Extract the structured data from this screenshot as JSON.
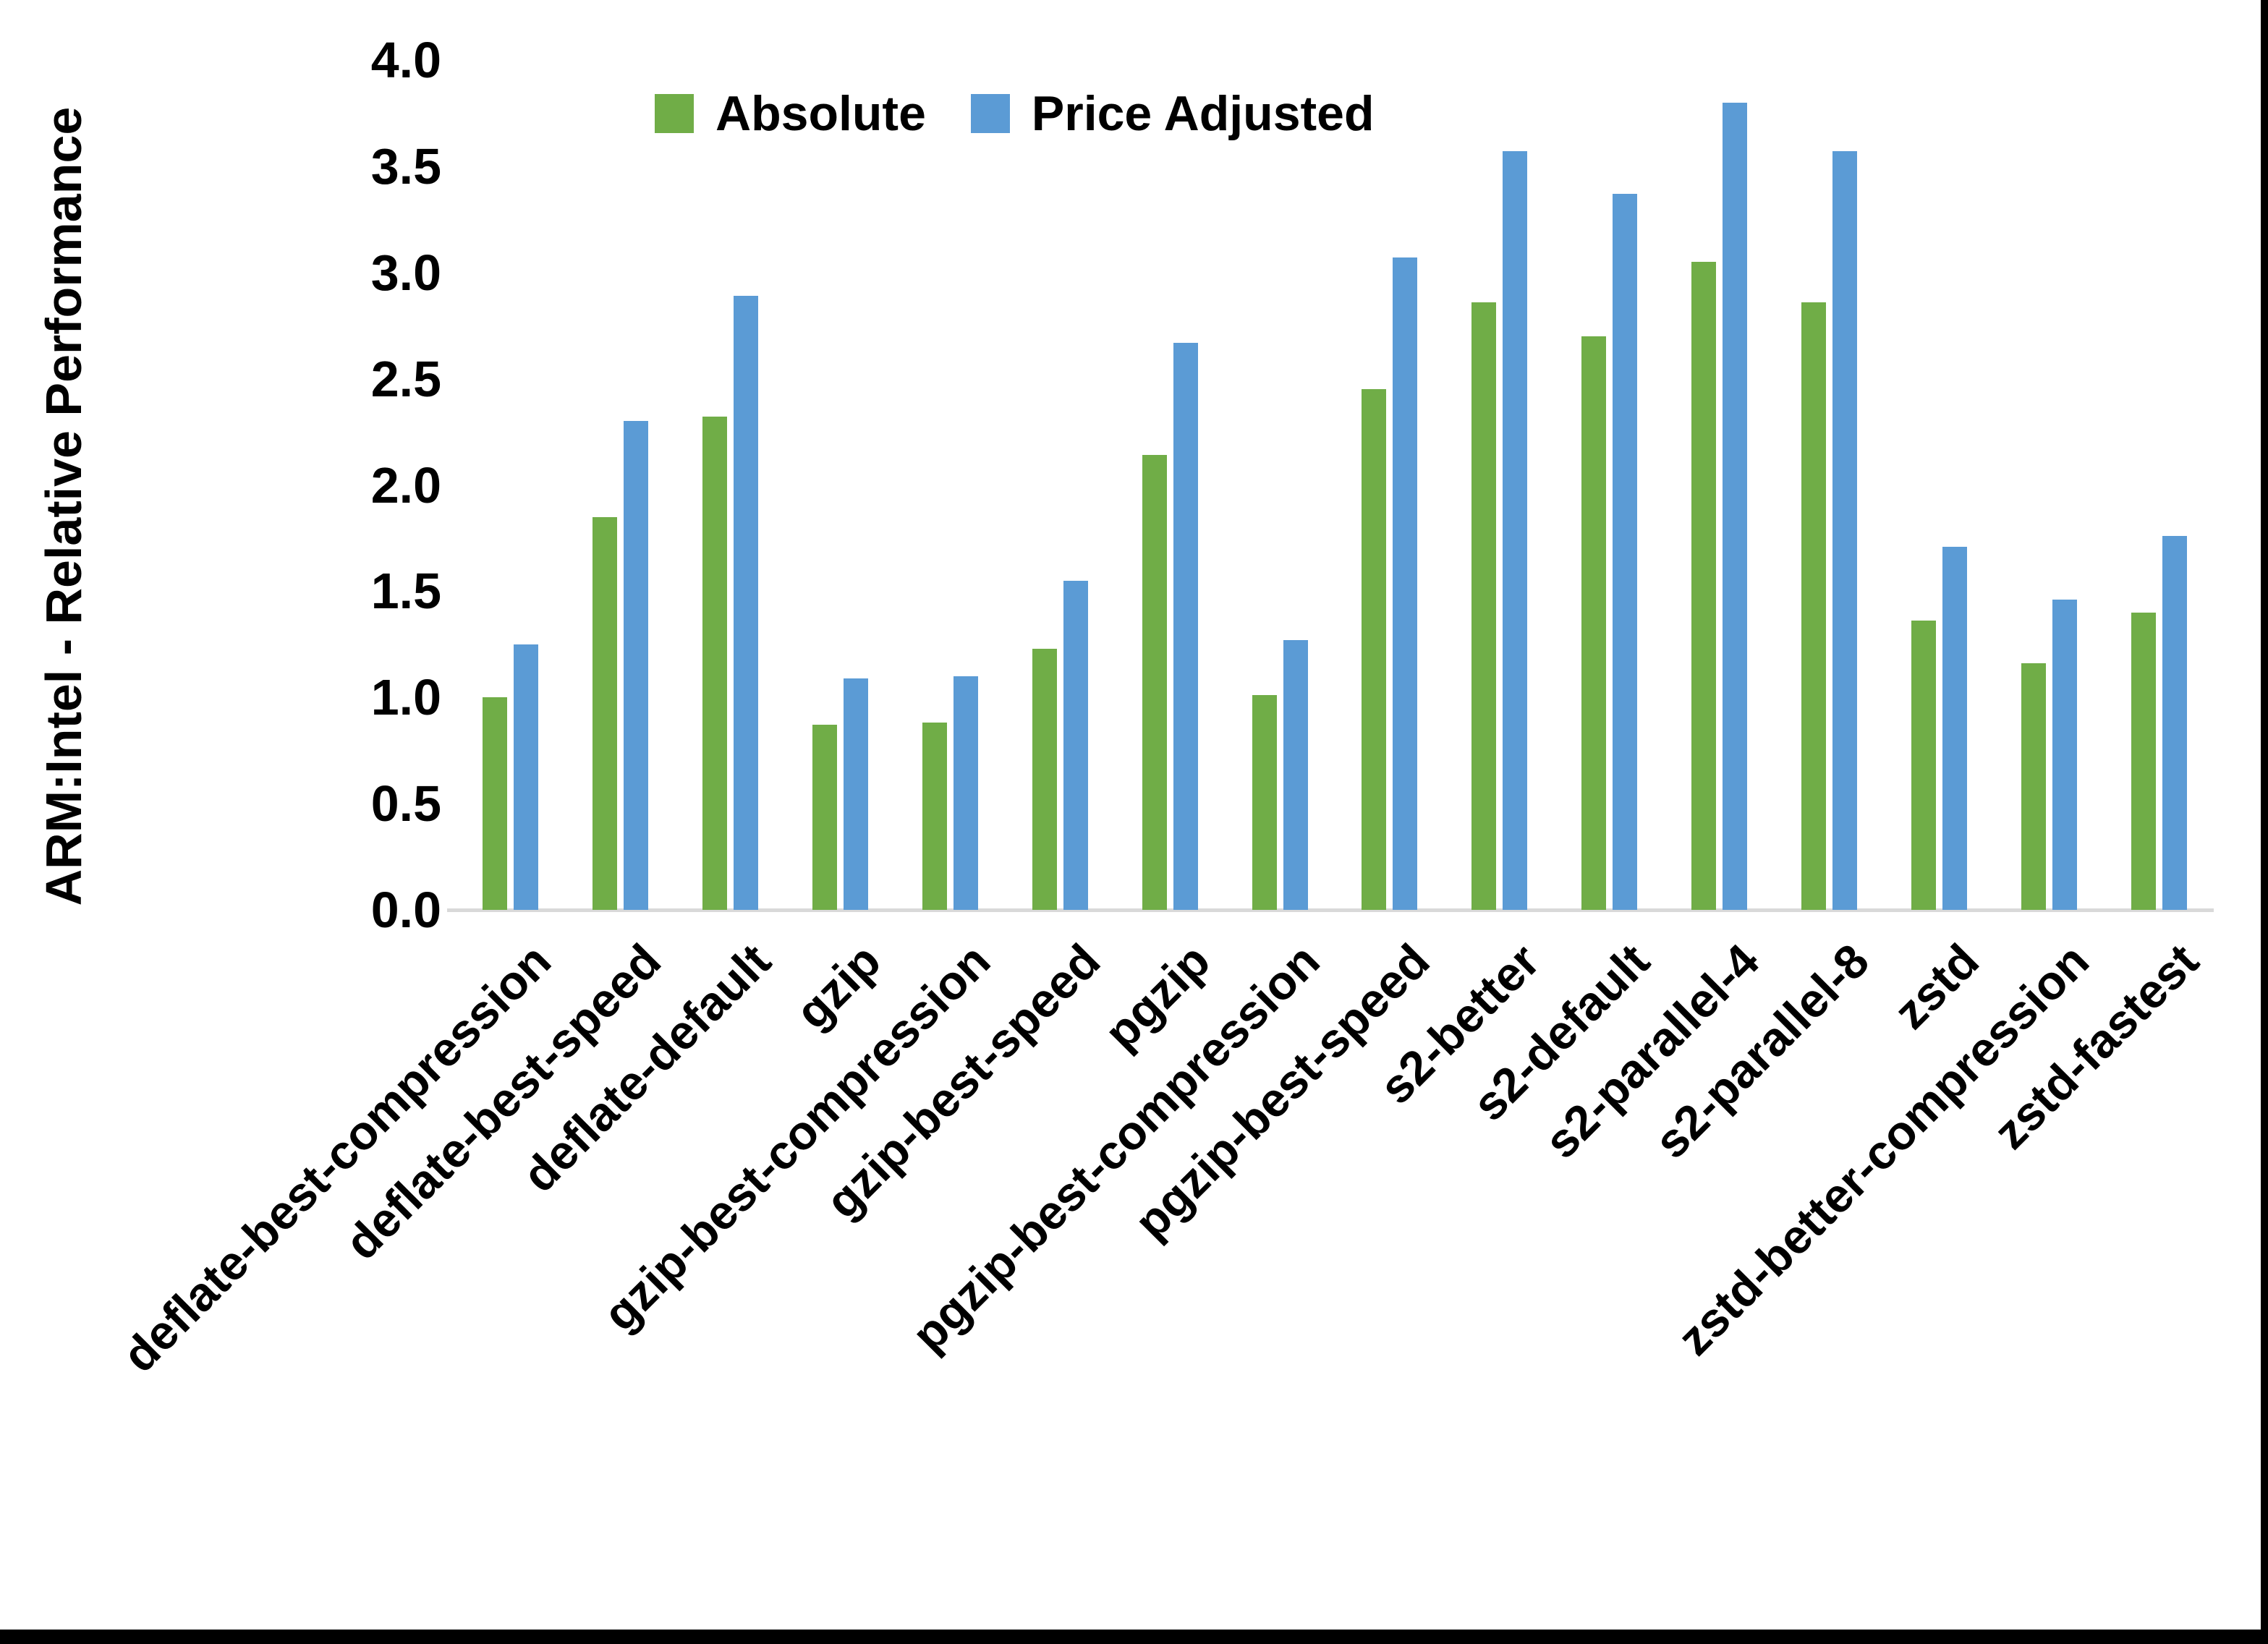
{
  "figure": {
    "y_axis_title": "ARM:Intel - Relative Performance"
  },
  "legend": {
    "items": [
      {
        "label": "Absolute",
        "color": "#70AD47"
      },
      {
        "label": "Price Adjusted",
        "color": "#5B9BD5"
      }
    ]
  },
  "chart_data": {
    "type": "bar",
    "title": "",
    "xlabel": "",
    "ylabel": "ARM:Intel - Relative Performance",
    "ylim": [
      0,
      4
    ],
    "ytick_labels": [
      "0.0",
      "0.5",
      "1.0",
      "1.5",
      "2.0",
      "2.5",
      "3.0",
      "3.5",
      "4.0"
    ],
    "grid": false,
    "legend_position": "top-center",
    "axis_line_color": "#D9D9D9",
    "categories": [
      "deflate-best-compression",
      "deflate-best-speed",
      "deflate-default",
      "gzip",
      "gzip-best-compression",
      "gzip-best-speed",
      "pgzip",
      "pgzip-best-compression",
      "pgzip-best-speed",
      "s2-better",
      "s2-default",
      "s2-parallel-4",
      "s2-parallel-8",
      "zstd",
      "zstd-better-compression",
      "zstd-fastest"
    ],
    "series": [
      {
        "name": "Absolute",
        "color": "#70AD47",
        "values": [
          1.0,
          1.85,
          2.32,
          0.87,
          0.88,
          1.23,
          2.14,
          1.01,
          2.45,
          2.86,
          2.7,
          3.05,
          2.86,
          1.36,
          1.16,
          1.4
        ]
      },
      {
        "name": "Price Adjusted",
        "color": "#5B9BD5",
        "values": [
          1.25,
          2.3,
          2.89,
          1.09,
          1.1,
          1.55,
          2.67,
          1.27,
          3.07,
          3.57,
          3.37,
          3.8,
          3.57,
          1.71,
          1.46,
          1.76
        ]
      }
    ]
  }
}
